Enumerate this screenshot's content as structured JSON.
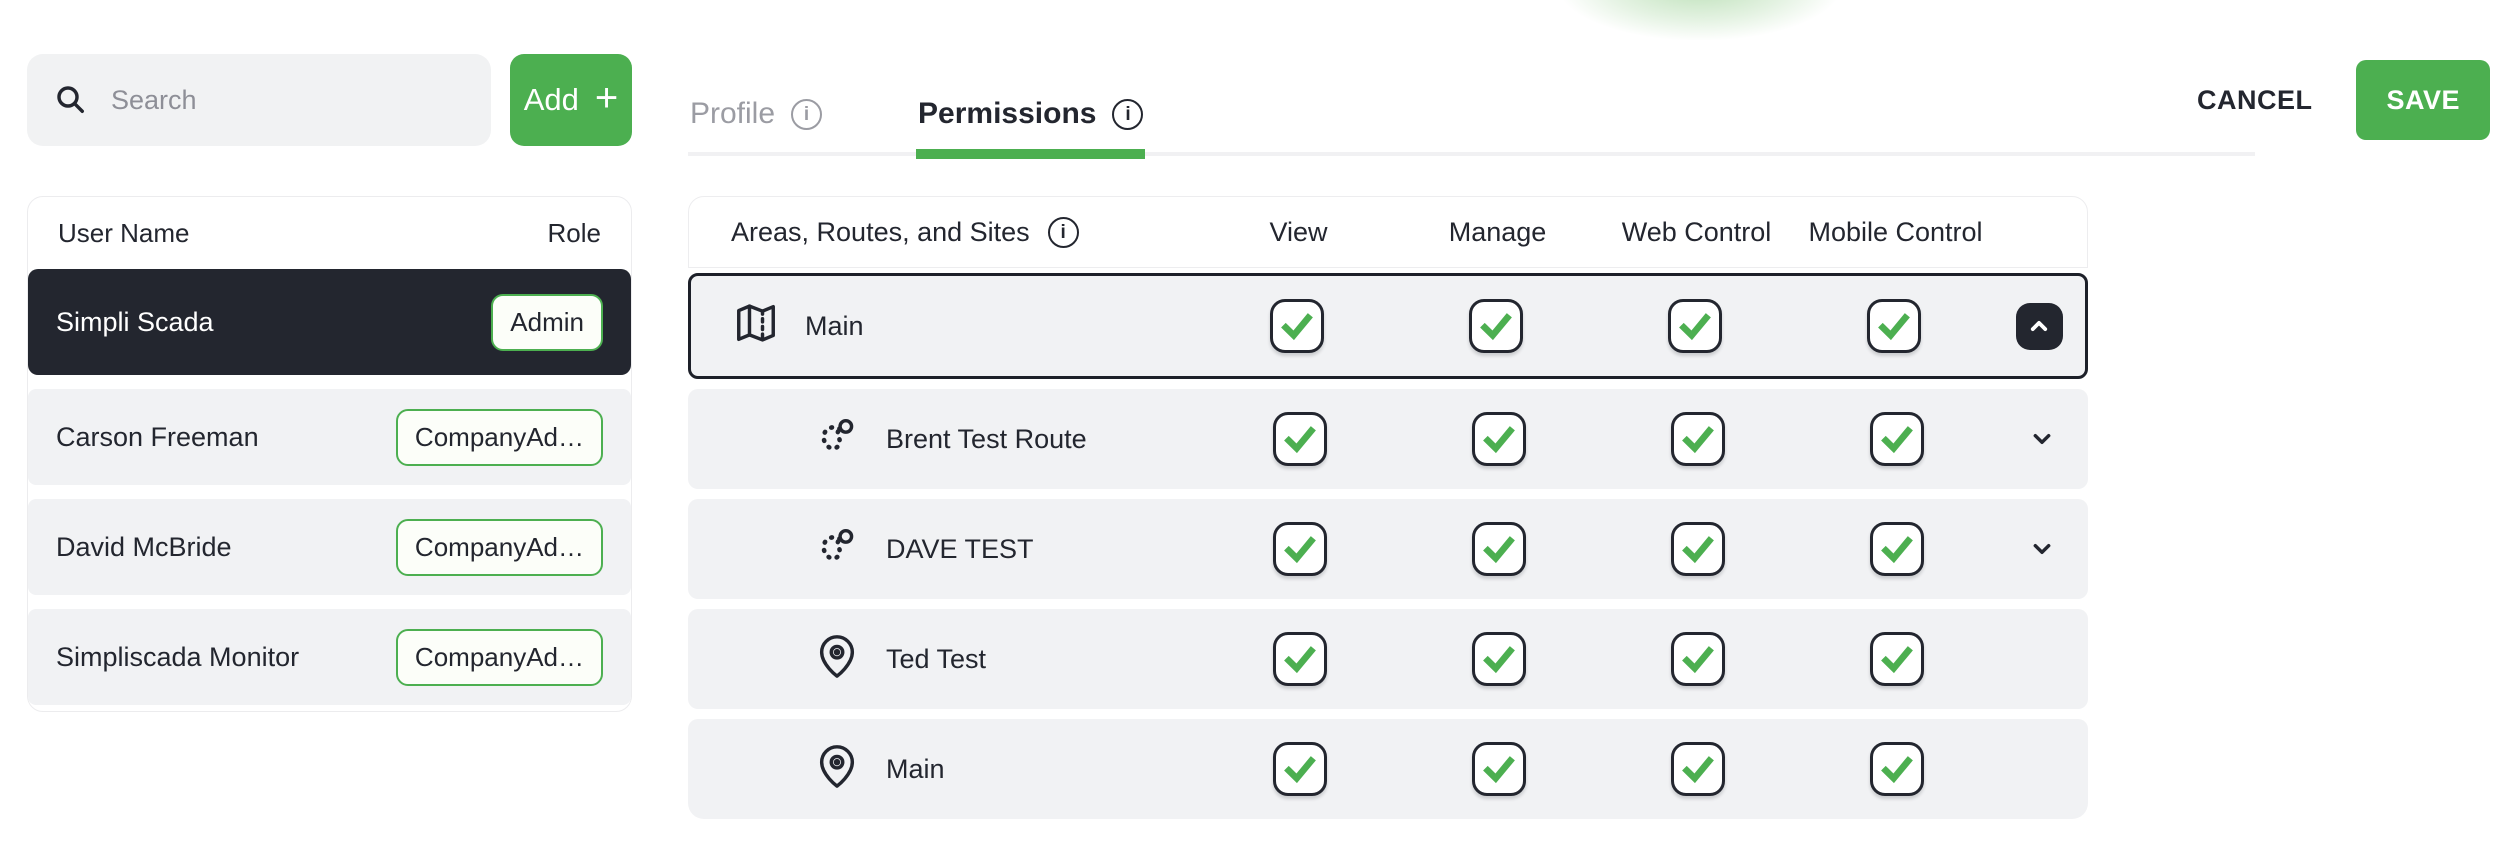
{
  "colors": {
    "accent_green": "#4caf50",
    "dark": "#23262f",
    "row_gray": "#f1f2f4"
  },
  "left_panel": {
    "search_placeholder": "Search",
    "add_button_label": "Add",
    "add_button_plus": "+",
    "list_header": {
      "user_name": "User Name",
      "role": "Role"
    },
    "users": [
      {
        "name": "Simpli Scada",
        "role": "Admin",
        "selected": true
      },
      {
        "name": "Carson Freeman",
        "role": "CompanyAd…",
        "selected": false
      },
      {
        "name": "David McBride",
        "role": "CompanyAd…",
        "selected": false
      },
      {
        "name": "Simpliscada Monitor",
        "role": "CompanyAd…",
        "selected": false
      }
    ]
  },
  "header": {
    "tabs": [
      {
        "label": "Profile",
        "active": false,
        "info_icon": "i"
      },
      {
        "label": "Permissions",
        "active": true,
        "info_icon": "i"
      }
    ],
    "cancel_label": "CANCEL",
    "save_label": "SAVE"
  },
  "permissions_table": {
    "first_column_header": "Areas, Routes, and Sites",
    "info_icon": "i",
    "columns": [
      {
        "key": "view",
        "label": "View"
      },
      {
        "key": "manage",
        "label": "Manage"
      },
      {
        "key": "web_control",
        "label": "Web Control"
      },
      {
        "key": "mobile_control",
        "label": "Mobile Control"
      }
    ],
    "rows": [
      {
        "name": "Main",
        "icon": "map-icon",
        "indent": 0,
        "selected": true,
        "expander": "collapse",
        "permissions": {
          "view": true,
          "manage": true,
          "web_control": true,
          "mobile_control": true
        }
      },
      {
        "name": "Brent Test Route",
        "icon": "route-icon",
        "indent": 1,
        "selected": false,
        "expander": "expand",
        "permissions": {
          "view": true,
          "manage": true,
          "web_control": true,
          "mobile_control": true
        }
      },
      {
        "name": "DAVE TEST",
        "icon": "route-icon",
        "indent": 1,
        "selected": false,
        "expander": "expand",
        "permissions": {
          "view": true,
          "manage": true,
          "web_control": true,
          "mobile_control": true
        }
      },
      {
        "name": "Ted Test",
        "icon": "pin-icon",
        "indent": 1,
        "selected": false,
        "expander": null,
        "permissions": {
          "view": true,
          "manage": true,
          "web_control": true,
          "mobile_control": true
        }
      },
      {
        "name": "Main",
        "icon": "pin-icon",
        "indent": 1,
        "selected": false,
        "expander": null,
        "permissions": {
          "view": true,
          "manage": true,
          "web_control": true,
          "mobile_control": true
        }
      }
    ]
  }
}
